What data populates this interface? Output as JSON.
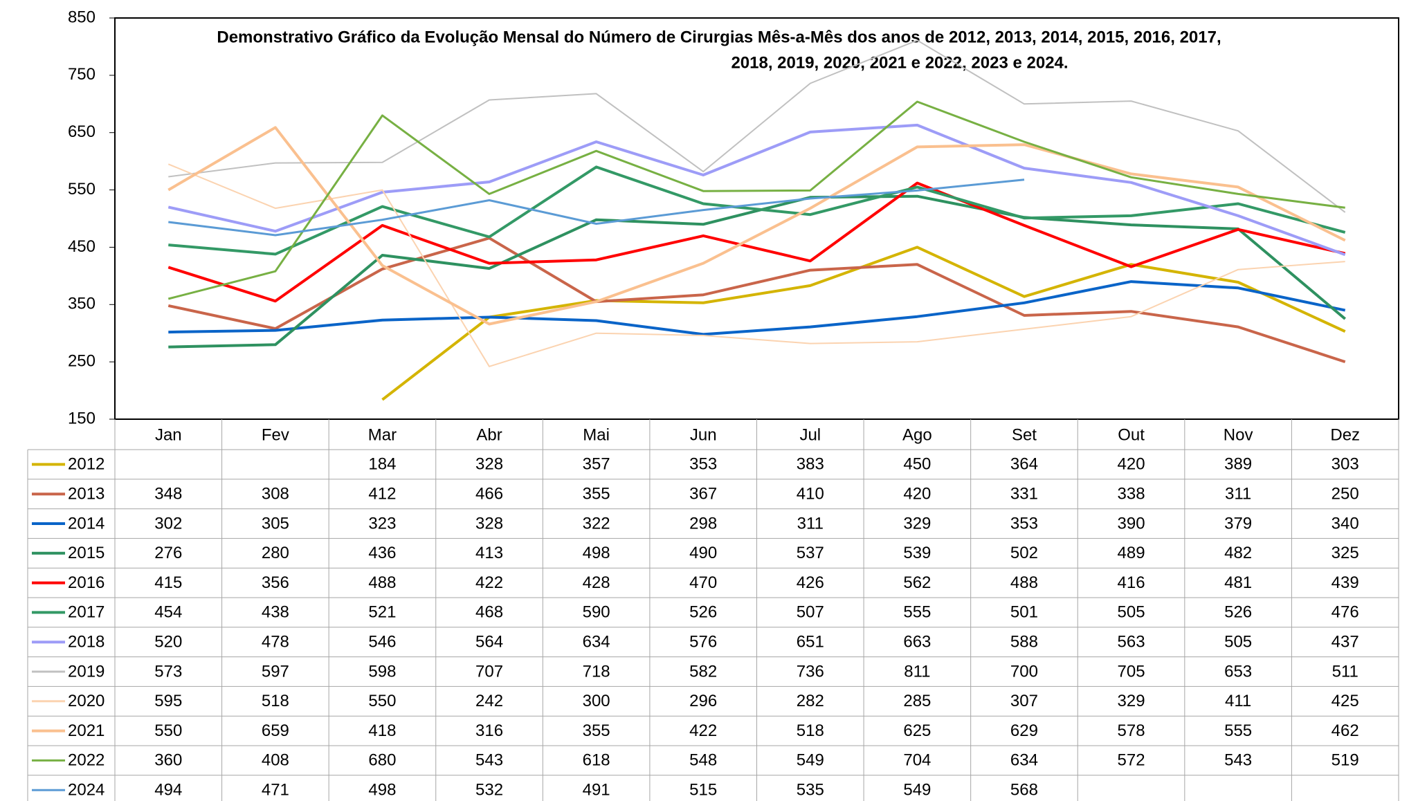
{
  "chart_data": {
    "type": "line",
    "title": [
      "Demonstrativo Gráfico da Evolução Mensal do Número de Cirurgias Mês-a-Mês dos anos de  2012, 2013, 2014, 2015, 2016, 2017,",
      "2018, 2019, 2020, 2021 e 2022, 2023 e 2024."
    ],
    "categories": [
      "Jan",
      "Fev",
      "Mar",
      "Abr",
      "Mai",
      "Jun",
      "Jul",
      "Ago",
      "Set",
      "Out",
      "Nov",
      "Dez"
    ],
    "ylim": [
      150,
      850
    ],
    "yticks": [
      150,
      250,
      350,
      450,
      550,
      650,
      750,
      850
    ],
    "grid": false,
    "series": [
      {
        "name": "2012",
        "color": "#d4b400",
        "width": 4,
        "values": [
          null,
          null,
          184,
          328,
          357,
          353,
          383,
          450,
          364,
          420,
          389,
          303
        ]
      },
      {
        "name": "2013",
        "color": "#c9654a",
        "width": 4,
        "values": [
          348,
          308,
          412,
          466,
          355,
          367,
          410,
          420,
          331,
          338,
          311,
          250
        ]
      },
      {
        "name": "2014",
        "color": "#0a64c8",
        "width": 4,
        "values": [
          302,
          305,
          323,
          328,
          322,
          298,
          311,
          329,
          353,
          390,
          379,
          340
        ]
      },
      {
        "name": "2015",
        "color": "#2e9160",
        "width": 4,
        "values": [
          276,
          280,
          436,
          413,
          498,
          490,
          537,
          539,
          502,
          489,
          482,
          325
        ]
      },
      {
        "name": "2016",
        "color": "#ff0000",
        "width": 4,
        "values": [
          415,
          356,
          488,
          422,
          428,
          470,
          426,
          562,
          488,
          416,
          481,
          439
        ]
      },
      {
        "name": "2017",
        "color": "#339966",
        "width": 4,
        "values": [
          454,
          438,
          521,
          468,
          590,
          526,
          507,
          555,
          501,
          505,
          526,
          476
        ]
      },
      {
        "name": "2018",
        "color": "#9d9cf7",
        "width": 4,
        "values": [
          520,
          478,
          546,
          564,
          634,
          576,
          651,
          663,
          588,
          563,
          505,
          437
        ]
      },
      {
        "name": "2019",
        "color": "#c0c0c0",
        "width": 2,
        "values": [
          573,
          597,
          598,
          707,
          718,
          582,
          736,
          811,
          700,
          705,
          653,
          511
        ]
      },
      {
        "name": "2020",
        "color": "#fbd3b0",
        "width": 2,
        "values": [
          595,
          518,
          550,
          242,
          300,
          296,
          282,
          285,
          307,
          329,
          411,
          425
        ]
      },
      {
        "name": "2021",
        "color": "#fac08f",
        "width": 4,
        "values": [
          550,
          659,
          418,
          316,
          355,
          422,
          518,
          625,
          629,
          578,
          555,
          462
        ]
      },
      {
        "name": "2022",
        "color": "#77b043",
        "width": 3,
        "values": [
          360,
          408,
          680,
          543,
          618,
          548,
          549,
          704,
          634,
          572,
          543,
          519
        ]
      },
      {
        "name": "2024",
        "color": "#5b9bd5",
        "width": 3,
        "values": [
          494,
          471,
          498,
          532,
          491,
          515,
          535,
          549,
          568,
          null,
          null,
          null
        ]
      }
    ]
  }
}
